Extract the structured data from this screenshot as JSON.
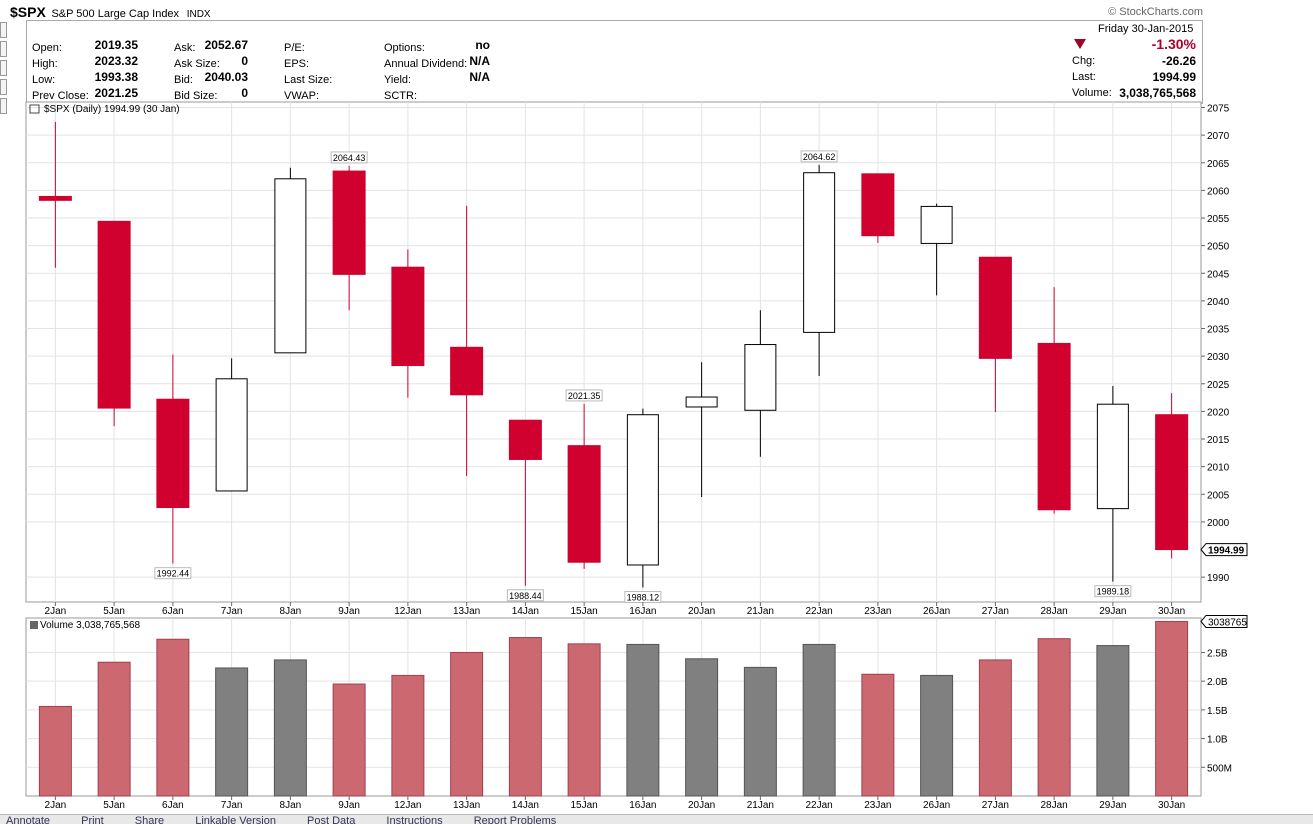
{
  "header": {
    "symbol": "$SPX",
    "name": "S&P 500 Large Cap Index",
    "exchange": "INDX",
    "brand": "© StockCharts.com",
    "date": "Friday  30-Jan-2015",
    "change_pct": "-1.30%",
    "change_label": "Chg:",
    "change_value": "-26.26",
    "last_label": "Last:",
    "last_value": "1994.99",
    "volume_label": "Volume:",
    "volume_value": "3,038,765,568"
  },
  "stats": [
    {
      "label": "Open:",
      "value": "2019.35"
    },
    {
      "label": "High:",
      "value": "2023.32"
    },
    {
      "label": "Low:",
      "value": "1993.38"
    },
    {
      "label": "Prev Close:",
      "value": "2021.25"
    }
  ],
  "quote": [
    {
      "label": "Ask:",
      "value": "2052.67"
    },
    {
      "label": "Ask Size:",
      "value": "0"
    },
    {
      "label": "Bid:",
      "value": "2040.03"
    },
    {
      "label": "Bid Size:",
      "value": "0"
    }
  ],
  "fundamentals": [
    {
      "label": "P/E:",
      "value": ""
    },
    {
      "label": "EPS:",
      "value": ""
    },
    {
      "label": "Last Size:",
      "value": ""
    },
    {
      "label": "VWAP:",
      "value": ""
    }
  ],
  "extra": [
    {
      "label": "Options:",
      "value": "no"
    },
    {
      "label": "Annual Dividend:",
      "value": "N/A"
    },
    {
      "label": "Yield:",
      "value": "N/A"
    },
    {
      "label": "SCTR:",
      "value": ""
    }
  ],
  "colors": {
    "down": "#d0002f",
    "up": "#ffffff",
    "vol_down": "#cc6870",
    "vol_up": "#808080",
    "grid": "#e3e3e3"
  },
  "chart_data": [
    {
      "type": "candlestick",
      "title": "$SPX (Daily) 1994.99 (30 Jan)",
      "categories": [
        "2Jan",
        "5Jan",
        "6Jan",
        "7Jan",
        "8Jan",
        "9Jan",
        "12Jan",
        "13Jan",
        "14Jan",
        "15Jan",
        "16Jan",
        "20Jan",
        "21Jan",
        "22Jan",
        "23Jan",
        "26Jan",
        "27Jan",
        "28Jan",
        "29Jan",
        "30Jan"
      ],
      "open": [
        2058.9,
        2054.4,
        2022.2,
        2005.6,
        2030.6,
        2063.5,
        2046.1,
        2031.6,
        2018.4,
        2013.8,
        1992.2,
        2020.8,
        2020.2,
        2034.3,
        2063.0,
        2050.4,
        2047.9,
        2032.3,
        2002.4,
        2019.4
      ],
      "high": [
        2072.4,
        2054.4,
        2030.3,
        2029.6,
        2064.1,
        2064.43,
        2049.3,
        2057.2,
        2018.4,
        2021.35,
        2020.5,
        2028.9,
        2038.3,
        2064.62,
        2063.0,
        2057.6,
        2047.9,
        2042.5,
        2024.6,
        2023.3
      ],
      "low": [
        2046.0,
        2017.3,
        1992.44,
        2005.6,
        2030.6,
        2038.3,
        2022.5,
        2008.3,
        1988.44,
        1991.5,
        1988.12,
        2004.5,
        2011.8,
        2026.4,
        2050.5,
        2041.0,
        2019.9,
        2001.5,
        1989.18,
        1993.4
      ],
      "close": [
        2058.2,
        2020.6,
        2002.6,
        2025.9,
        2062.1,
        2044.8,
        2028.3,
        2023.0,
        2011.3,
        1992.7,
        2019.4,
        2022.6,
        2032.1,
        2063.2,
        2051.8,
        2057.1,
        2029.6,
        2002.2,
        2021.3,
        1994.99
      ],
      "ylim": [
        1985.5,
        2076
      ],
      "y_ticks": [
        1990,
        2000,
        2005,
        2010,
        2015,
        2020,
        2025,
        2030,
        2035,
        2040,
        2045,
        2050,
        2055,
        2060,
        2065,
        2070,
        2075
      ],
      "annotations": [
        {
          "index": 2,
          "price": 1992.44,
          "label": "1992.44",
          "pos": "below"
        },
        {
          "index": 5,
          "price": 2064.43,
          "label": "2064.43",
          "pos": "above"
        },
        {
          "index": 8,
          "price": 1988.44,
          "label": "1988.44",
          "pos": "below"
        },
        {
          "index": 9,
          "price": 2021.35,
          "label": "2021.35",
          "pos": "above"
        },
        {
          "index": 10,
          "price": 1988.12,
          "label": "1988.12",
          "pos": "below"
        },
        {
          "index": 13,
          "price": 2064.62,
          "label": "2064.62",
          "pos": "above"
        },
        {
          "index": 18,
          "price": 1989.18,
          "label": "1989.18",
          "pos": "below"
        }
      ],
      "last_price_label": "1994.99"
    },
    {
      "type": "bar",
      "title": "Volume 3,038,765,568",
      "categories": [
        "2Jan",
        "5Jan",
        "6Jan",
        "7Jan",
        "8Jan",
        "9Jan",
        "12Jan",
        "13Jan",
        "14Jan",
        "15Jan",
        "16Jan",
        "20Jan",
        "21Jan",
        "22Jan",
        "23Jan",
        "26Jan",
        "27Jan",
        "28Jan",
        "29Jan",
        "30Jan"
      ],
      "values": [
        1.56,
        2.33,
        2.73,
        2.23,
        2.37,
        1.95,
        2.1,
        2.5,
        2.76,
        2.65,
        2.64,
        2.39,
        2.24,
        2.64,
        2.12,
        2.1,
        2.37,
        2.74,
        2.62,
        3.04
      ],
      "direction": [
        "down",
        "down",
        "down",
        "up",
        "up",
        "down",
        "down",
        "down",
        "down",
        "down",
        "up",
        "up",
        "up",
        "up",
        "down",
        "up",
        "down",
        "down",
        "up",
        "down"
      ],
      "unit": "B",
      "ylim": [
        0,
        3.1
      ],
      "y_ticks": [
        0.5,
        1.0,
        1.5,
        2.0,
        2.5
      ],
      "y_tick_labels": [
        "500M",
        "1.0B",
        "1.5B",
        "2.0B",
        "2.5B"
      ],
      "last_value_label": "3038765"
    }
  ],
  "footer": {
    "items": [
      "Annotate",
      "Print",
      "Share",
      "Linkable Version",
      "Post Data",
      "Instructions",
      "Report Problems"
    ]
  }
}
